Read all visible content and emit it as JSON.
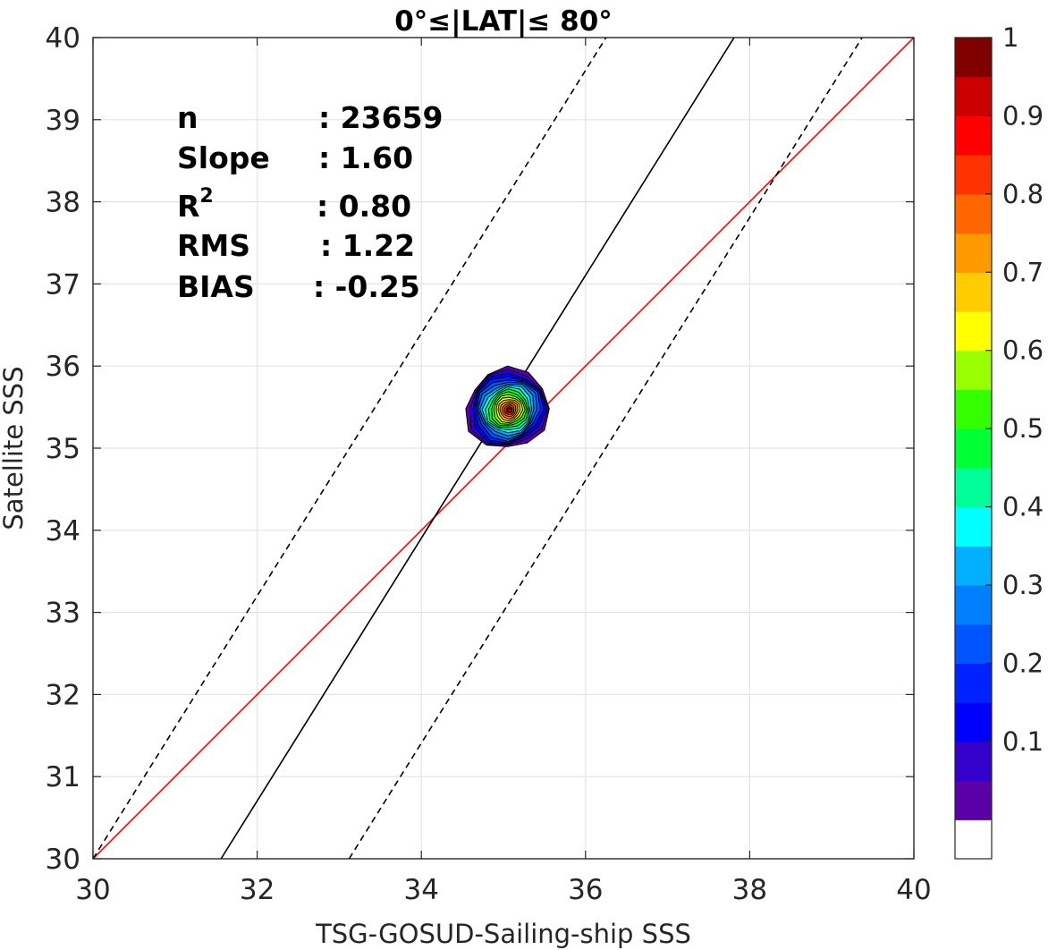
{
  "chart_data": {
    "type": "contour",
    "title": "0°≤|LAT|≤ 80°",
    "xlabel": "TSG-GOSUD-Sailing-ship SSS",
    "ylabel": "Satellite SSS",
    "xlim": [
      30,
      40
    ],
    "ylim": [
      30,
      40
    ],
    "xticks": [
      "30",
      "32",
      "34",
      "36",
      "38",
      "40"
    ],
    "yticks": [
      "30",
      "31",
      "32",
      "33",
      "34",
      "35",
      "36",
      "37",
      "38",
      "39",
      "40"
    ],
    "grid": true,
    "stats": [
      {
        "label": "n",
        "value": ": 23659"
      },
      {
        "label": "Slope",
        "value": ": 1.60"
      },
      {
        "label": "R",
        "sup": "2",
        "value": ": 0.80"
      },
      {
        "label": "RMS",
        "value": ": 1.22"
      },
      {
        "label": "BIAS",
        "value": ": -0.25"
      }
    ],
    "lines": [
      {
        "name": "identity",
        "color": "#ff0000",
        "style": "solid",
        "points": [
          [
            30,
            30
          ],
          [
            40,
            40
          ]
        ]
      },
      {
        "name": "fit",
        "color": "#000000",
        "style": "solid",
        "points": [
          [
            31.56,
            30
          ],
          [
            37.81,
            40
          ]
        ]
      },
      {
        "name": "fit-upper",
        "color": "#000000",
        "style": "dashed",
        "points": [
          [
            30,
            30
          ],
          [
            36.25,
            40
          ]
        ]
      },
      {
        "name": "fit-lower",
        "color": "#000000",
        "style": "dashed",
        "points": [
          [
            33.12,
            30
          ],
          [
            39.37,
            40
          ]
        ]
      }
    ],
    "density": {
      "center": [
        35.05,
        35.48
      ],
      "outer_radius": [
        0.5,
        0.5
      ],
      "levels": 19,
      "max": 1
    },
    "colorbar": {
      "ticks": [
        "0.1",
        "0.2",
        "0.3",
        "0.4",
        "0.5",
        "0.6",
        "0.7",
        "0.8",
        "0.9",
        "1"
      ],
      "tick_values": [
        0.1,
        0.2,
        0.3,
        0.4,
        0.5,
        0.6,
        0.7,
        0.8,
        0.9,
        1.0
      ],
      "colors": [
        "#ffffff",
        "#5a00a8",
        "#3300cc",
        "#0000ff",
        "#0022ff",
        "#0055ff",
        "#0080ff",
        "#00b0ff",
        "#00ffff",
        "#00ff99",
        "#00ff33",
        "#33ff00",
        "#99ff00",
        "#ffff00",
        "#ffcc00",
        "#ff9900",
        "#ff6600",
        "#ff3300",
        "#ff0000",
        "#cc0000",
        "#800000"
      ]
    }
  }
}
